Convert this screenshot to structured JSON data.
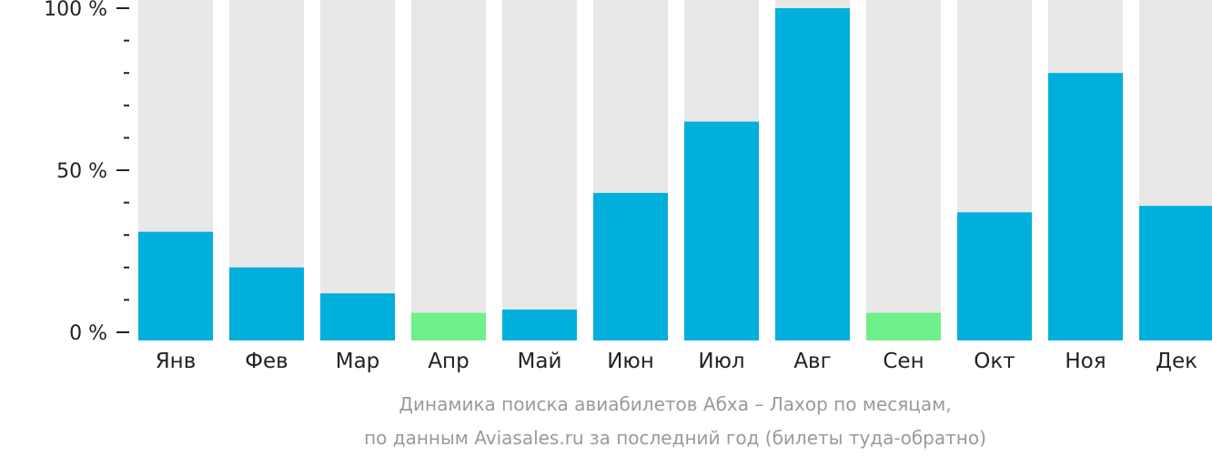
{
  "chart_data": {
    "type": "bar",
    "categories": [
      "Янв",
      "Фев",
      "Мар",
      "Апр",
      "Май",
      "Июн",
      "Июл",
      "Авг",
      "Сен",
      "Окт",
      "Ноя",
      "Дек"
    ],
    "values": [
      31,
      20,
      12,
      6,
      7,
      43,
      65,
      100,
      6,
      37,
      80,
      39
    ],
    "highlight": [
      false,
      false,
      false,
      true,
      false,
      false,
      false,
      false,
      true,
      false,
      false,
      false
    ],
    "ylim": [
      0,
      100
    ],
    "yticks": [
      {
        "value": 0,
        "label": "0 %"
      },
      {
        "value": 50,
        "label": "50 %"
      },
      {
        "value": 100,
        "label": "100 %"
      }
    ],
    "minor_tick_step": 10,
    "caption_line1": "Динамика поиска авиабилетов Абха – Лахор по месяцам,",
    "caption_line2": "по данным Aviasales.ru за последний год (билеты туда-обратно)",
    "colors": {
      "bar": "#00afdc",
      "bar_highlight": "#6ef08a",
      "bar_background": "#e8e8e8",
      "axis": "#222222",
      "caption": "#9a9a9a"
    }
  }
}
